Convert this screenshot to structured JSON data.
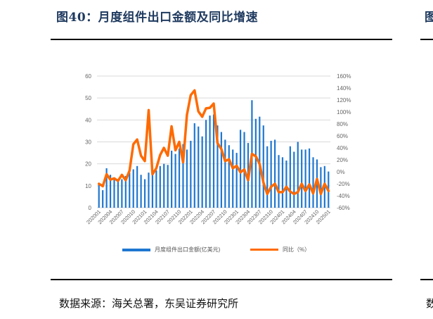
{
  "header": {
    "title": "图40：月度组件出口金额及同比增速",
    "next_panel_title_fragment": "图"
  },
  "footer": {
    "source": "数据来源：海关总署，东吴证券研究所",
    "next_panel_source_fragment": "数"
  },
  "legend": {
    "bar_label": "月度组件出口金额(亿美元)",
    "line_label": "同比（%）"
  },
  "colors": {
    "bar": "#1f77d0",
    "line": "#ff6a00",
    "grid": "#d9d9d9",
    "title": "#1f3a5f"
  },
  "chart_data": {
    "type": "bar+line",
    "title": "月度组件出口金额及同比增速",
    "xlabel": "",
    "ylabel_left": "亿美元",
    "ylabel_right": "%",
    "ylim_left": [
      0,
      60
    ],
    "ylim_right": [
      -60,
      160
    ],
    "left_ticks": [
      "0",
      "10",
      "20",
      "30",
      "40",
      "50",
      "60"
    ],
    "right_ticks": [
      "-60%",
      "-40%",
      "-20%",
      "0%",
      "20%",
      "40%",
      "60%",
      "80%",
      "100%",
      "120%",
      "140%",
      "160%"
    ],
    "x_tick_labels": [
      "202001",
      "202004",
      "202007",
      "202010",
      "202101",
      "202104",
      "202107",
      "202110",
      "202201",
      "202204",
      "202207",
      "202210",
      "202301",
      "202304",
      "202307",
      "202310",
      "202401",
      "202404",
      "202407",
      "202410",
      "202501"
    ],
    "grid": true,
    "legend_position": "bottom",
    "categories": [
      "202001",
      "202002",
      "202003",
      "202004",
      "202005",
      "202006",
      "202007",
      "202008",
      "202009",
      "202010",
      "202011",
      "202012",
      "202101",
      "202102",
      "202103",
      "202104",
      "202105",
      "202106",
      "202107",
      "202108",
      "202109",
      "202110",
      "202111",
      "202112",
      "202201",
      "202202",
      "202203",
      "202204",
      "202205",
      "202206",
      "202207",
      "202208",
      "202209",
      "202210",
      "202211",
      "202212",
      "202301",
      "202302",
      "202303",
      "202304",
      "202305",
      "202306",
      "202307",
      "202308",
      "202309",
      "202310",
      "202311",
      "202312",
      "202401",
      "202402",
      "202403",
      "202404",
      "202405",
      "202406",
      "202407",
      "202408",
      "202409",
      "202410",
      "202411",
      "202412",
      "202501"
    ],
    "series": [
      {
        "name": "月度组件出口金额(亿美元)",
        "type": "bar",
        "axis": "left",
        "values": [
          10.5,
          8,
          18,
          15,
          13.5,
          12,
          13,
          14.5,
          16,
          17.5,
          19,
          15,
          13,
          16,
          16.5,
          17,
          19,
          20,
          19.5,
          26,
          24.5,
          27,
          29,
          26.5,
          30.5,
          38.5,
          37,
          32.5,
          40,
          42,
          42.5,
          37.5,
          34.5,
          31,
          28.5,
          26.5,
          25,
          35.5,
          34.5,
          29.5,
          49,
          40.5,
          41.5,
          37.5,
          28,
          30.5,
          31,
          24,
          23,
          21.5,
          28,
          25.5,
          30,
          26.5,
          26.5,
          27,
          23,
          22,
          18.5,
          19,
          16.5
        ]
      },
      {
        "name": "同比（%）",
        "type": "line",
        "axis": "right",
        "values": [
          -20,
          -24,
          -4,
          -13,
          -11,
          -15,
          -5,
          -14,
          2,
          46,
          54,
          27,
          18,
          103,
          -4,
          6,
          28,
          40,
          27,
          76,
          36,
          50,
          16,
          95,
          128,
          136,
          101,
          92,
          106,
          107,
          114,
          48,
          38,
          18,
          21,
          6,
          10,
          -1,
          4,
          -14,
          30,
          26,
          13,
          -18,
          -37,
          -25,
          -20,
          -34,
          -34,
          -25,
          -33,
          -37,
          -34,
          -20,
          -32,
          -21,
          -36,
          -12,
          -37,
          -20,
          -32
        ]
      }
    ]
  }
}
